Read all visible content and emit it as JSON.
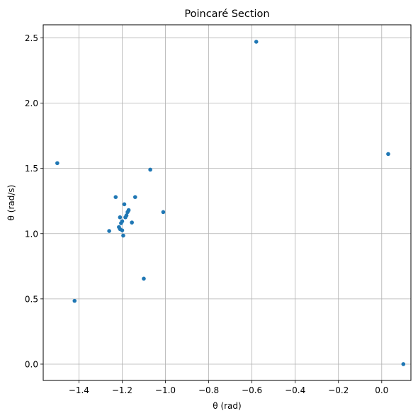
{
  "chart_data": {
    "type": "scatter",
    "title": "Poincaré Section",
    "xlabel": "θ (rad)",
    "ylabel": "θ (rad/s)",
    "xlim": [
      -1.565,
      0.135
    ],
    "ylim": [
      -0.125,
      2.6
    ],
    "xticks": [
      -1.4,
      -1.2,
      -1.0,
      -0.8,
      -0.6,
      -0.4,
      -0.2,
      0.0
    ],
    "xtick_labels": [
      "−1.4",
      "−1.2",
      "−1.0",
      "−0.8",
      "−0.6",
      "−0.4",
      "−0.2",
      "0.0"
    ],
    "yticks": [
      0.0,
      0.5,
      1.0,
      1.5,
      2.0,
      2.5
    ],
    "ytick_labels": [
      "0.0",
      "0.5",
      "1.0",
      "1.5",
      "2.0",
      "2.5"
    ],
    "grid": true,
    "marker_color": "#1f77b4",
    "points": [
      {
        "x": -0.58,
        "y": 2.47
      },
      {
        "x": 0.03,
        "y": 1.61
      },
      {
        "x": -1.5,
        "y": 1.54
      },
      {
        "x": -1.07,
        "y": 1.49
      },
      {
        "x": -1.23,
        "y": 1.28
      },
      {
        "x": -1.14,
        "y": 1.28
      },
      {
        "x": -1.19,
        "y": 1.225
      },
      {
        "x": -1.17,
        "y": 1.18
      },
      {
        "x": -1.175,
        "y": 1.165
      },
      {
        "x": -1.01,
        "y": 1.165
      },
      {
        "x": -1.18,
        "y": 1.14
      },
      {
        "x": -1.185,
        "y": 1.125
      },
      {
        "x": -1.21,
        "y": 1.125
      },
      {
        "x": -1.2,
        "y": 1.095
      },
      {
        "x": -1.155,
        "y": 1.085
      },
      {
        "x": -1.205,
        "y": 1.08
      },
      {
        "x": -1.215,
        "y": 1.05
      },
      {
        "x": -1.21,
        "y": 1.035
      },
      {
        "x": -1.26,
        "y": 1.02
      },
      {
        "x": -1.2,
        "y": 1.025
      },
      {
        "x": -1.195,
        "y": 0.985
      },
      {
        "x": -1.1,
        "y": 0.655
      },
      {
        "x": -1.42,
        "y": 0.485
      },
      {
        "x": 0.1,
        "y": 0.0
      }
    ]
  }
}
